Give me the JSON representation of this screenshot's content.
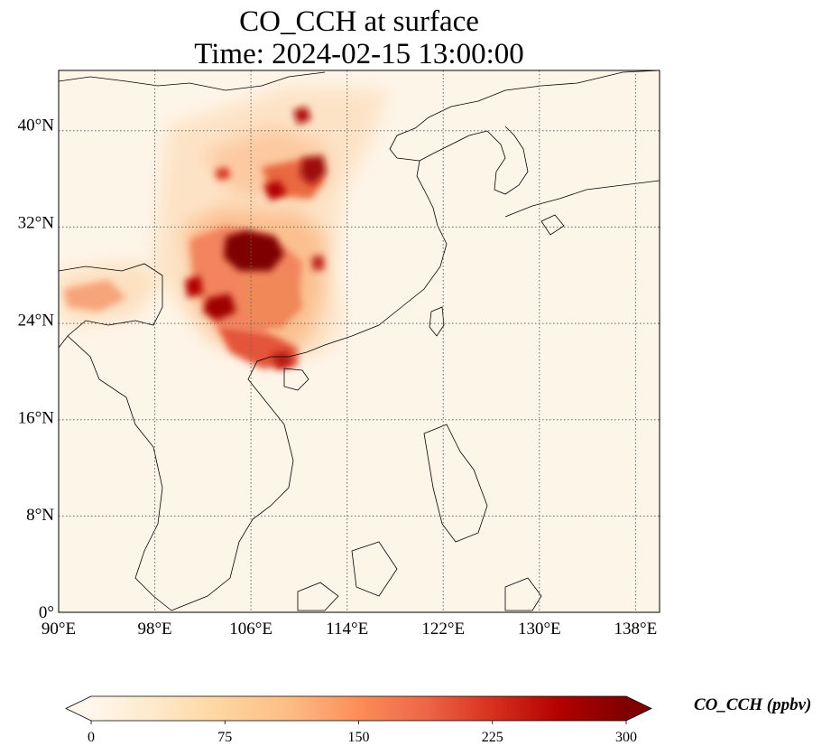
{
  "title": {
    "line1": "CO_CCH at surface",
    "line2": "Time: 2024-02-15 13:00:00"
  },
  "map": {
    "lon_range": [
      90,
      140
    ],
    "lat_range": [
      0,
      44.5
    ],
    "lon_ticks": [
      "90°E",
      "98°E",
      "106°E",
      "114°E",
      "122°E",
      "130°E",
      "138°E"
    ],
    "lat_ticks": [
      "0°",
      "8°N",
      "16°N",
      "24°N",
      "32°N",
      "40°N"
    ],
    "gridline_style": "dotted",
    "colormap": "OrRd"
  },
  "colorbar": {
    "label": "CO_CCH (ppbv)",
    "ticks": [
      "0",
      "75",
      "150",
      "225",
      "300"
    ],
    "range": [
      0,
      300
    ],
    "extend": "both",
    "colors": [
      "#fff7ec",
      "#fee8c8",
      "#fdd49e",
      "#fdbb84",
      "#fc8d59",
      "#ef6548",
      "#d7301f",
      "#b30000",
      "#7f0000"
    ]
  }
}
